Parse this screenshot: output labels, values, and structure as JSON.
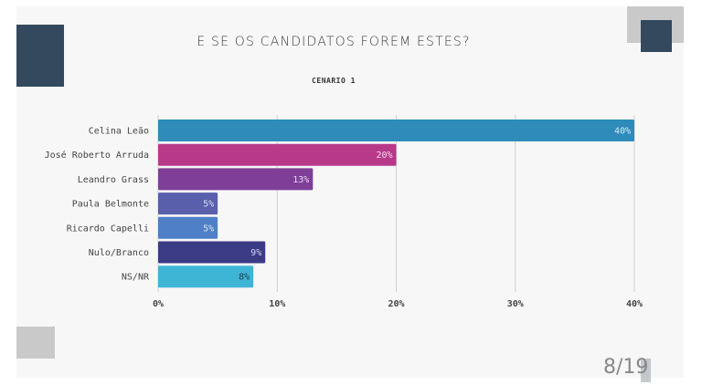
{
  "slide": {
    "title": "E SE OS CANDIDATOS FOREM ESTES?",
    "page_indicator": "8/19"
  },
  "chart_data": {
    "type": "bar",
    "orientation": "horizontal",
    "title": "CENARIO 1",
    "categories": [
      "Celina Leão",
      "José Roberto Arruda",
      "Leandro Grass",
      "Paula Belmonte",
      "Ricardo Capelli",
      "Nulo/Branco",
      "NS/NR"
    ],
    "values": [
      40,
      20,
      13,
      5,
      5,
      9,
      8
    ],
    "value_labels": [
      "40%",
      "20%",
      "13%",
      "5%",
      "5%",
      "9%",
      "8%"
    ],
    "colors": [
      "#2e8bba",
      "#b8398a",
      "#7f3f98",
      "#5a5fac",
      "#4f7fc6",
      "#3b3b86",
      "#3fb5d6"
    ],
    "label_colors": [
      "#d8ecf5",
      "#f3d9ea",
      "#e6d6ee",
      "#d9dcf2",
      "#d9e6f7",
      "#d6d6ef",
      "#1d3c4a"
    ],
    "xlim": [
      0,
      40
    ],
    "x_ticks": [
      0,
      10,
      20,
      30,
      40
    ],
    "x_tick_labels": [
      "0%",
      "10%",
      "20%",
      "30%",
      "40%"
    ],
    "grid": true,
    "xlabel": "",
    "ylabel": ""
  }
}
